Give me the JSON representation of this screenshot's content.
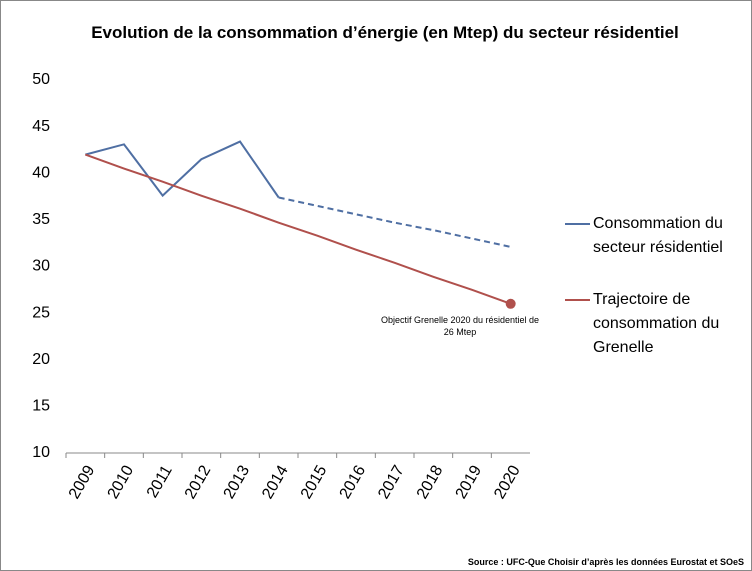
{
  "chart_data": {
    "type": "line",
    "title": "Evolution de la consommation d’énergie (en Mtep) du secteur résidentiel",
    "categories": [
      "2009",
      "2010",
      "2011",
      "2012",
      "2013",
      "2014",
      "2015",
      "2016",
      "2017",
      "2018",
      "2019",
      "2020"
    ],
    "series": [
      {
        "name": "Consommation du secteur résidentiel",
        "color": "#4f6fa3",
        "values": [
          42,
          43.1,
          37.6,
          41.5,
          43.4,
          37.4,
          null,
          null,
          null,
          null,
          null,
          null
        ]
      },
      {
        "color": "#4f6fa3",
        "dashed": true,
        "values": [
          null,
          null,
          null,
          null,
          null,
          37.4,
          36.5,
          35.6,
          34.7,
          33.9,
          33.0,
          32.1
        ]
      },
      {
        "name": "Trajectoire de consommation du Grenelle",
        "color": "#b0504c",
        "values": [
          42,
          40.5,
          39.1,
          37.6,
          36.2,
          34.7,
          33.3,
          31.8,
          30.4,
          28.9,
          27.5,
          26
        ],
        "end_marker": true
      }
    ],
    "ylim": [
      10,
      50
    ],
    "yticks": [
      10,
      15,
      20,
      25,
      30,
      35,
      40,
      45,
      50
    ],
    "annotation": "Objectif Grenelle 2020 du résidentiel de 26 Mtep",
    "source": "Source : UFC-Que Choisir d’après les données Eurostat et SOeS",
    "legend": "right"
  }
}
